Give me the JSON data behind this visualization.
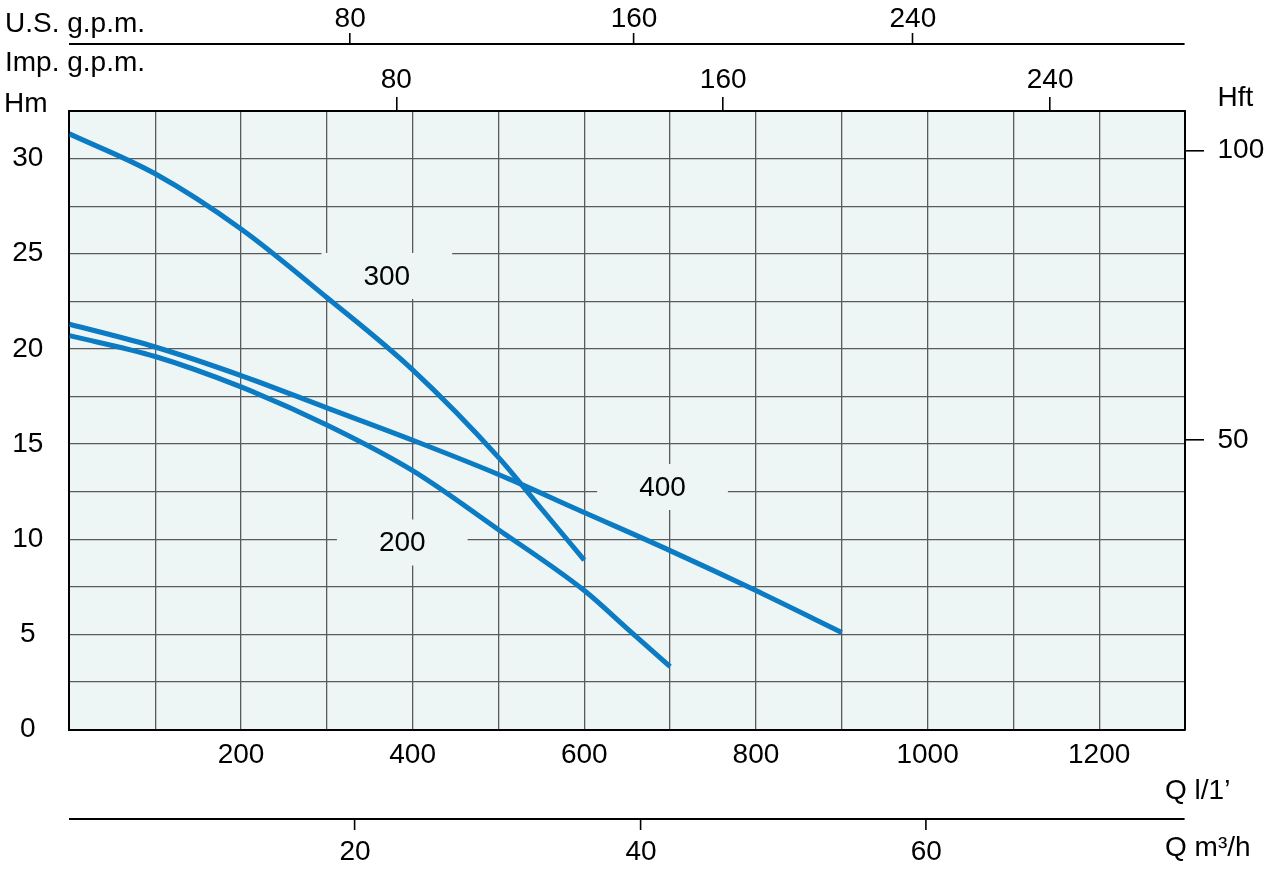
{
  "chart_data": {
    "type": "line",
    "xlabel": "Q l/1’",
    "ylabel": "Hm",
    "y2label": "Hft",
    "x2label": "Imp. g.p.m.",
    "xlim": [
      0,
      1300
    ],
    "xticks": [
      {
        "value": 100,
        "label": null
      },
      200,
      {
        "value": 300,
        "label": null
      },
      400,
      {
        "value": 500,
        "label": null
      },
      600,
      {
        "value": 700,
        "label": null
      },
      800,
      {
        "value": 900,
        "label": null
      },
      1000,
      {
        "value": 1100,
        "label": null
      },
      1200
    ],
    "ylim": [
      0,
      32.5
    ],
    "yticks": [
      0,
      {
        "value": 2.5,
        "label": null
      },
      5,
      {
        "value": 7.5,
        "label": null
      },
      10,
      {
        "value": 12.5,
        "label": null
      },
      15,
      {
        "value": 17.5,
        "label": null
      },
      20,
      {
        "value": 22.5,
        "label": null
      },
      25,
      {
        "value": 27.5,
        "label": null
      },
      30
    ],
    "y2lim": [
      0,
      106.8
    ],
    "y2ticks": [
      50,
      100
    ],
    "x2lim": [
      0,
      273
    ],
    "x2ticks": [
      80,
      160,
      240
    ],
    "grid": true,
    "line_style": "solid",
    "series": [
      {
        "name": "300",
        "color": "#0b7bc3",
        "x": [
          0,
          100,
          200,
          300,
          400,
          500,
          550,
          600
        ],
        "values": [
          31.3,
          29.2,
          26.3,
          22.7,
          18.9,
          14.3,
          11.6,
          8.9
        ]
      },
      {
        "name": "400",
        "color": "#0b7bc3",
        "x": [
          0,
          100,
          200,
          300,
          400,
          500,
          600,
          700,
          800,
          900
        ],
        "values": [
          21.3,
          20.1,
          18.6,
          16.9,
          15.2,
          13.4,
          11.4,
          9.4,
          7.3,
          5.1
        ]
      },
      {
        "name": "200",
        "color": "#0b7bc3",
        "x": [
          0,
          100,
          200,
          300,
          400,
          500,
          600,
          650,
          700
        ],
        "values": [
          20.7,
          19.6,
          18.0,
          16.0,
          13.6,
          10.5,
          7.3,
          5.3,
          3.3
        ]
      }
    ],
    "annotations": [
      "U.S. g.p.m.",
      "80",
      "160",
      "240",
      "Q m³/h",
      "20",
      "40",
      "60"
    ]
  }
}
